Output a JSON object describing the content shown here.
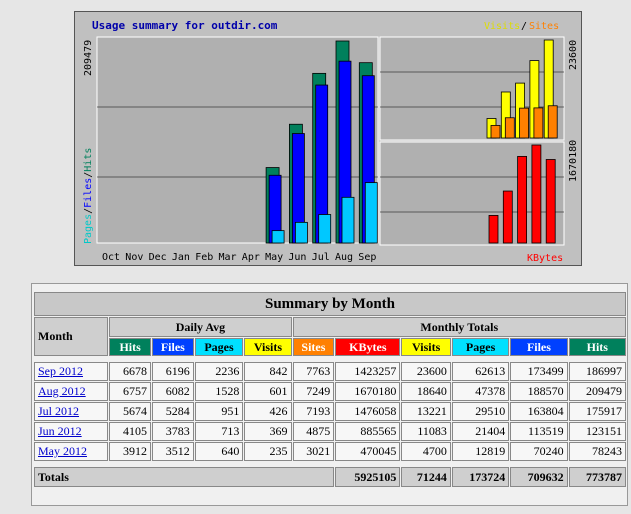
{
  "graph": {
    "title": "Usage summary for outdir.com",
    "legend_visits": "Visits",
    "legend_sep": "/",
    "legend_sites": "Sites",
    "left_scale_label": "209479",
    "left_axis_labels": [
      {
        "text": "Pages",
        "color": "#00c8c8"
      },
      {
        "text": "/",
        "color": "#000000"
      },
      {
        "text": "Files",
        "color": "#0000ff"
      },
      {
        "text": "/",
        "color": "#000000"
      },
      {
        "text": "Hits",
        "color": "#00805c"
      }
    ],
    "right_top_scale_label": "23600",
    "right_bottom_scale_label": "1670180",
    "kbytes_label": "KBytes"
  },
  "chart_data": {
    "type": "bar",
    "categories": [
      "Oct",
      "Nov",
      "Dec",
      "Jan",
      "Feb",
      "Mar",
      "Apr",
      "May",
      "Jun",
      "Jul",
      "Aug",
      "Sep"
    ],
    "series": [
      {
        "name": "Hits",
        "color": "#00805c",
        "values": [
          0,
          0,
          0,
          0,
          0,
          0,
          0,
          78243,
          123151,
          175917,
          209479,
          186997
        ]
      },
      {
        "name": "Files",
        "color": "#0000ff",
        "values": [
          0,
          0,
          0,
          0,
          0,
          0,
          0,
          70240,
          113519,
          163804,
          188570,
          173499
        ]
      },
      {
        "name": "Pages",
        "color": "#00c8ff",
        "values": [
          0,
          0,
          0,
          0,
          0,
          0,
          0,
          12819,
          21404,
          29510,
          47378,
          62613
        ]
      },
      {
        "name": "Visits",
        "color": "#ffff00",
        "values": [
          0,
          0,
          0,
          0,
          0,
          0,
          0,
          4700,
          11083,
          13221,
          18640,
          23600
        ]
      },
      {
        "name": "Sites",
        "color": "#ff8000",
        "values": [
          0,
          0,
          0,
          0,
          0,
          0,
          0,
          3021,
          4875,
          7193,
          7249,
          7763
        ]
      },
      {
        "name": "KBytes",
        "color": "#ff0000",
        "values": [
          0,
          0,
          0,
          0,
          0,
          0,
          0,
          470045,
          885565,
          1476058,
          1670180,
          1423257
        ]
      }
    ],
    "left_ymax": 209479,
    "right_top_ymax": 23600,
    "right_bottom_ymax": 1670180
  },
  "colors": {
    "hits": "#00805c",
    "files": "#0040ff",
    "pages": "#00e0ff",
    "visits": "#ffff00",
    "sites": "#ff8000",
    "kbytes": "#ff0000"
  },
  "table": {
    "title": "Summary by Month",
    "month_header": "Month",
    "daily_avg_header": "Daily Avg",
    "monthly_totals_header": "Monthly Totals",
    "daily_cols": [
      "Hits",
      "Files",
      "Pages",
      "Visits"
    ],
    "monthly_cols": [
      "Sites",
      "KBytes",
      "Visits",
      "Pages",
      "Files",
      "Hits"
    ],
    "rows": [
      {
        "month": "Sep 2012",
        "d_hits": "6678",
        "d_files": "6196",
        "d_pages": "2236",
        "d_visits": "842",
        "m_sites": "7763",
        "m_kbytes": "1423257",
        "m_visits": "23600",
        "m_pages": "62613",
        "m_files": "173499",
        "m_hits": "186997"
      },
      {
        "month": "Aug 2012",
        "d_hits": "6757",
        "d_files": "6082",
        "d_pages": "1528",
        "d_visits": "601",
        "m_sites": "7249",
        "m_kbytes": "1670180",
        "m_visits": "18640",
        "m_pages": "47378",
        "m_files": "188570",
        "m_hits": "209479"
      },
      {
        "month": "Jul 2012",
        "d_hits": "5674",
        "d_files": "5284",
        "d_pages": "951",
        "d_visits": "426",
        "m_sites": "7193",
        "m_kbytes": "1476058",
        "m_visits": "13221",
        "m_pages": "29510",
        "m_files": "163804",
        "m_hits": "175917"
      },
      {
        "month": "Jun 2012",
        "d_hits": "4105",
        "d_files": "3783",
        "d_pages": "713",
        "d_visits": "369",
        "m_sites": "4875",
        "m_kbytes": "885565",
        "m_visits": "11083",
        "m_pages": "21404",
        "m_files": "113519",
        "m_hits": "123151"
      },
      {
        "month": "May 2012",
        "d_hits": "3912",
        "d_files": "3512",
        "d_pages": "640",
        "d_visits": "235",
        "m_sites": "3021",
        "m_kbytes": "470045",
        "m_visits": "4700",
        "m_pages": "12819",
        "m_files": "70240",
        "m_hits": "78243"
      }
    ],
    "totals": {
      "label": "Totals",
      "kbytes": "5925105",
      "visits": "71244",
      "pages": "173724",
      "files": "709632",
      "hits": "773787"
    }
  }
}
